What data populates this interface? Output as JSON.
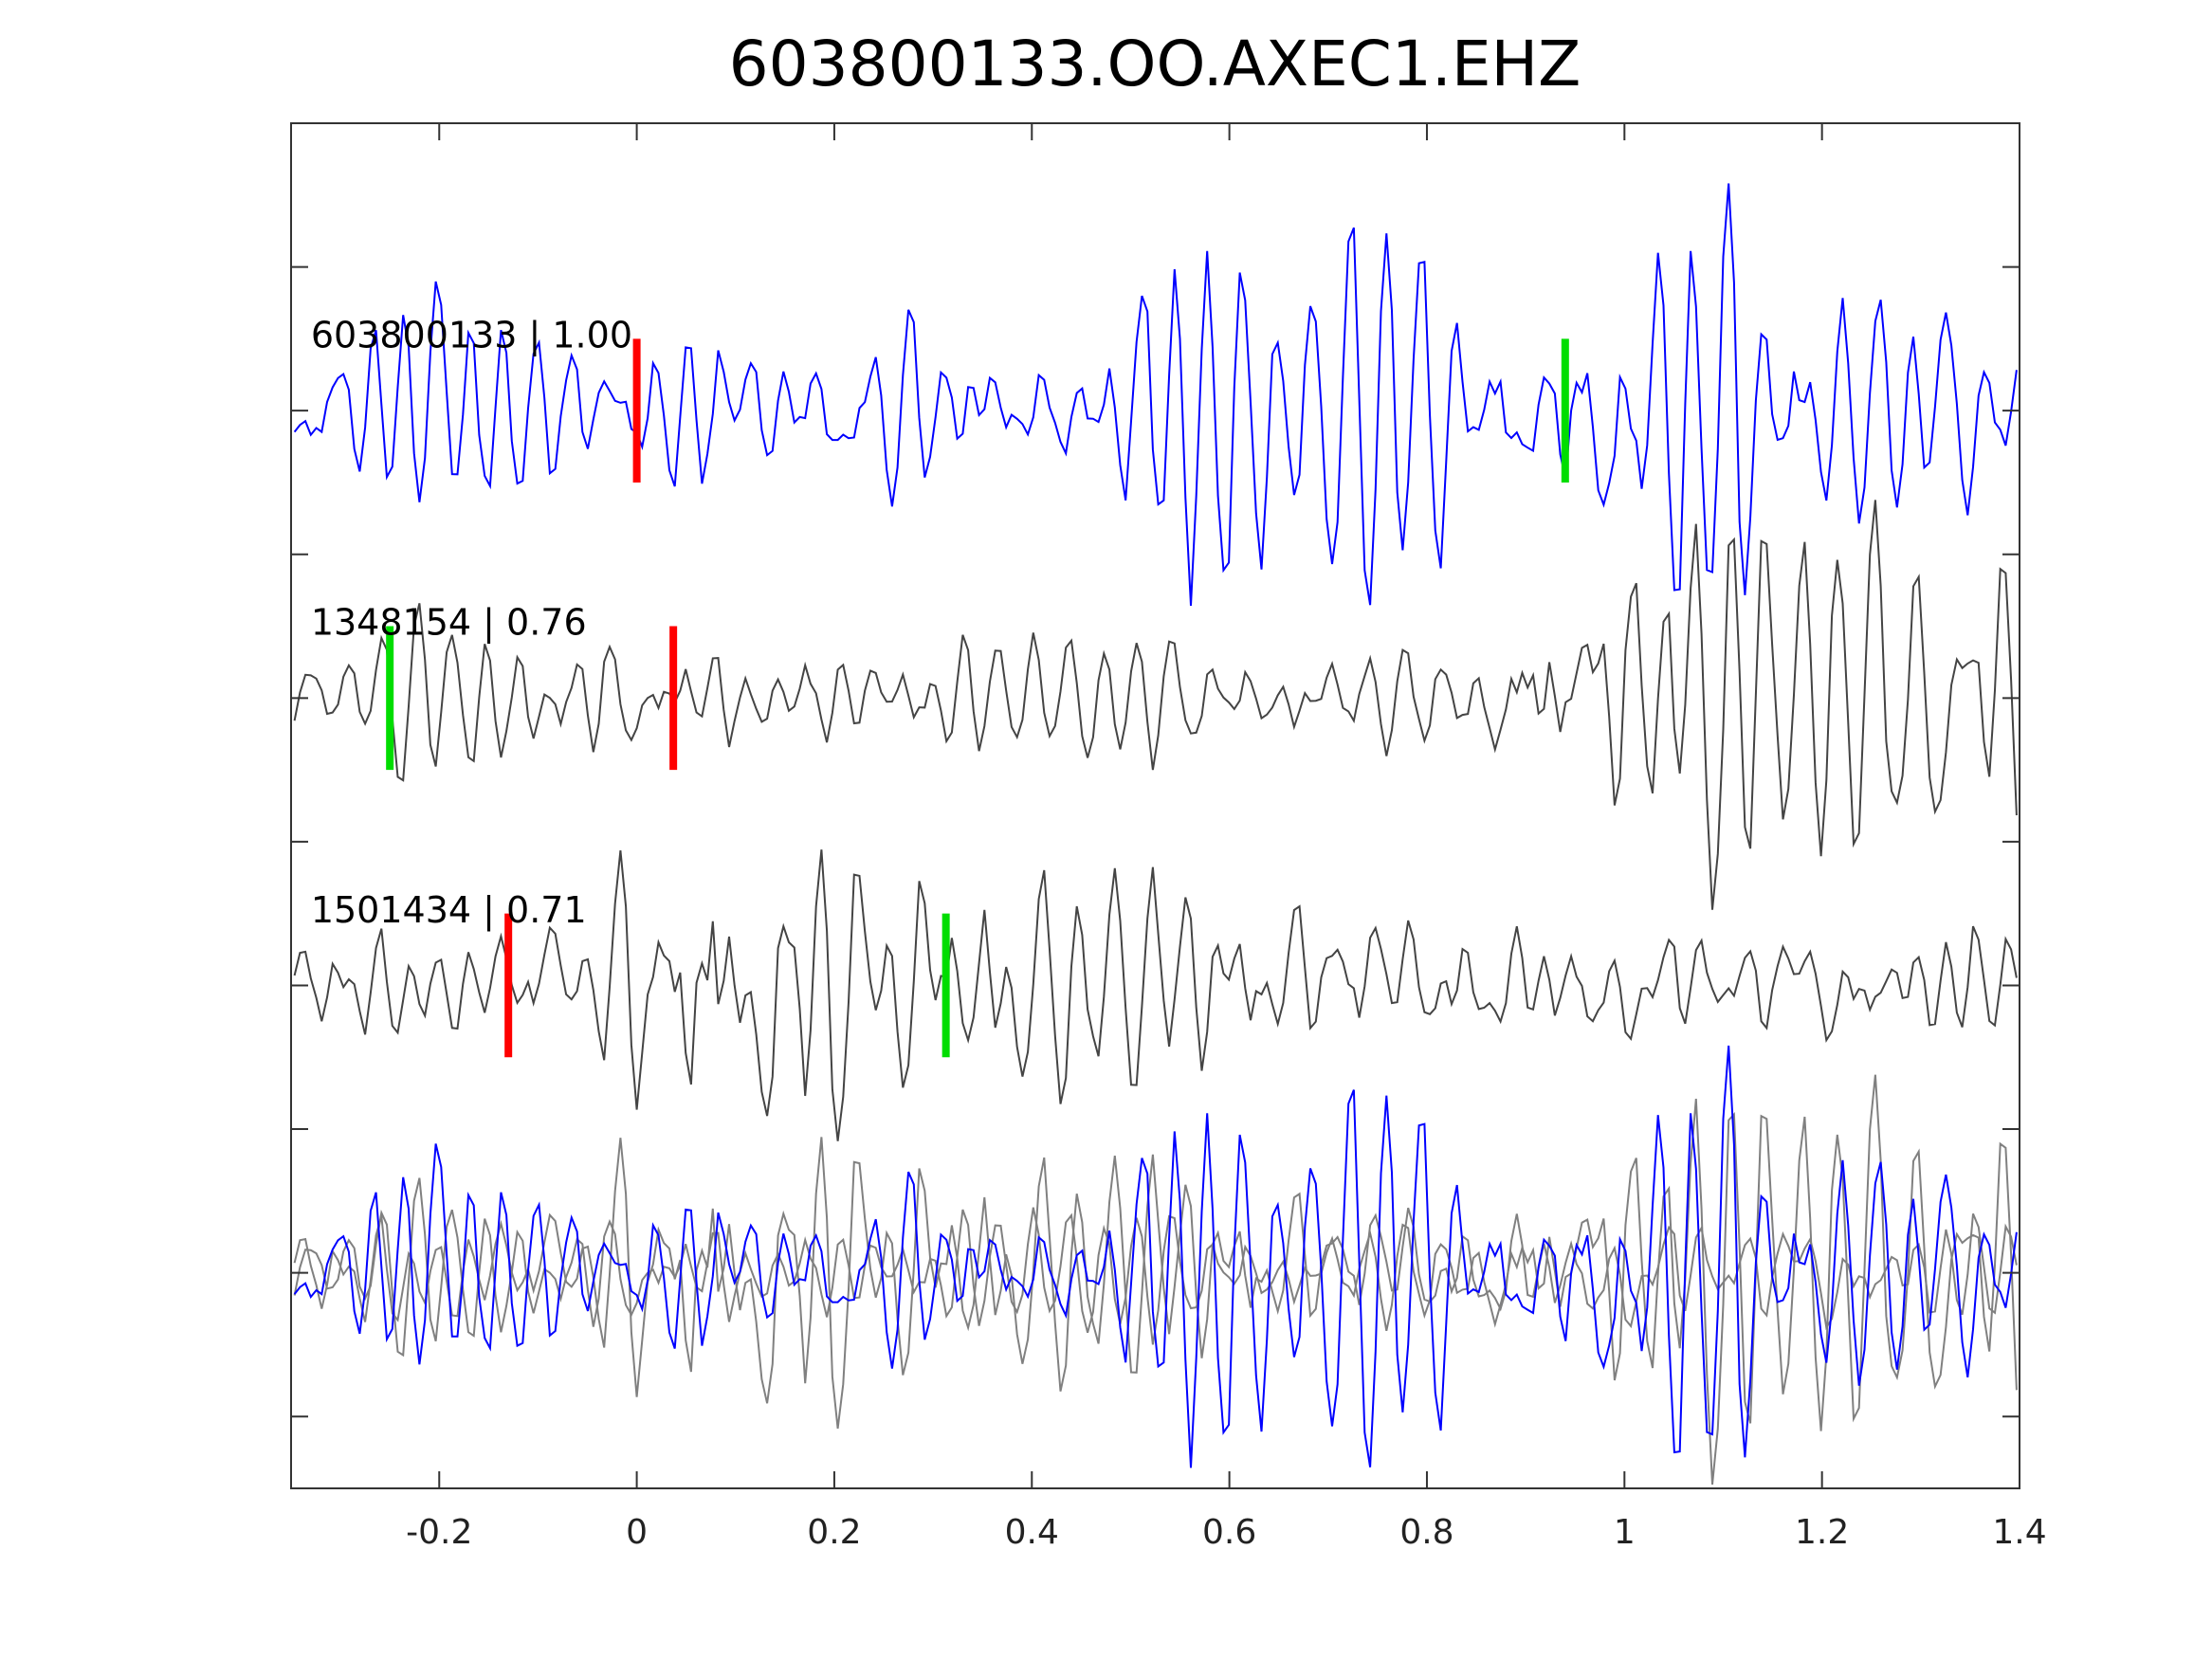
{
  "chart_data": {
    "type": "line",
    "title": "603800133.OO.AXEC1.EHZ",
    "xlabel": "",
    "ylabel": "",
    "xlim": [
      -0.35,
      1.4
    ],
    "ylim": [
      -0.75,
      4.0
    ],
    "x_ticks": [
      -0.2,
      0,
      0.2,
      0.4,
      0.6,
      0.8,
      1,
      1.2,
      1.4
    ],
    "x_tick_labels": [
      "-0.2",
      "0",
      "0.2",
      "0.4",
      "0.6",
      "0.8",
      "1",
      "1.2",
      "1.4"
    ],
    "y_ticks": [
      -0.5,
      0,
      0.5,
      1,
      1.5,
      2,
      2.5,
      3,
      3.5
    ],
    "grid": false,
    "series": [
      {
        "name": "603800133",
        "label": "603800133 | 1.00",
        "offset": 3,
        "color": "#0000ff",
        "seed": 11,
        "envelope": [
          [
            -0.35,
            0.22
          ],
          [
            0.3,
            0.22
          ],
          [
            0.5,
            0.3
          ],
          [
            0.6,
            0.45
          ],
          [
            0.75,
            0.3
          ],
          [
            0.95,
            0.3
          ],
          [
            1.02,
            0.5
          ],
          [
            1.15,
            0.4
          ],
          [
            1.25,
            0.25
          ],
          [
            1.4,
            0.22
          ]
        ],
        "markers": [
          {
            "x": 0.0,
            "color": "#ff0000"
          },
          {
            "x": 0.94,
            "color": "#00dd00"
          }
        ]
      },
      {
        "name": "1348154",
        "label": "1348154 | 0.76",
        "offset": 2,
        "color": "#444444",
        "seed": 23,
        "envelope": [
          [
            -0.35,
            0.15
          ],
          [
            0.85,
            0.15
          ],
          [
            0.93,
            0.4
          ],
          [
            1.4,
            0.4
          ]
        ],
        "markers": [
          {
            "x": -0.25,
            "color": "#00dd00"
          },
          {
            "x": 0.037,
            "color": "#ff0000"
          }
        ]
      },
      {
        "name": "1501434",
        "label": "1501434 | 0.71",
        "offset": 1,
        "color": "#444444",
        "seed": 37,
        "envelope": [
          [
            -0.35,
            0.12
          ],
          [
            -0.05,
            0.15
          ],
          [
            0.05,
            0.45
          ],
          [
            0.15,
            0.3
          ],
          [
            0.45,
            0.2
          ],
          [
            0.9,
            0.12
          ],
          [
            1.4,
            0.12
          ]
        ],
        "markers": [
          {
            "x": -0.13,
            "color": "#ff0000"
          },
          {
            "x": 0.313,
            "color": "#00dd00"
          }
        ]
      }
    ],
    "overlay": {
      "offset": 0,
      "colors": [
        "#0000ff",
        "#808080",
        "#808080"
      ]
    }
  }
}
